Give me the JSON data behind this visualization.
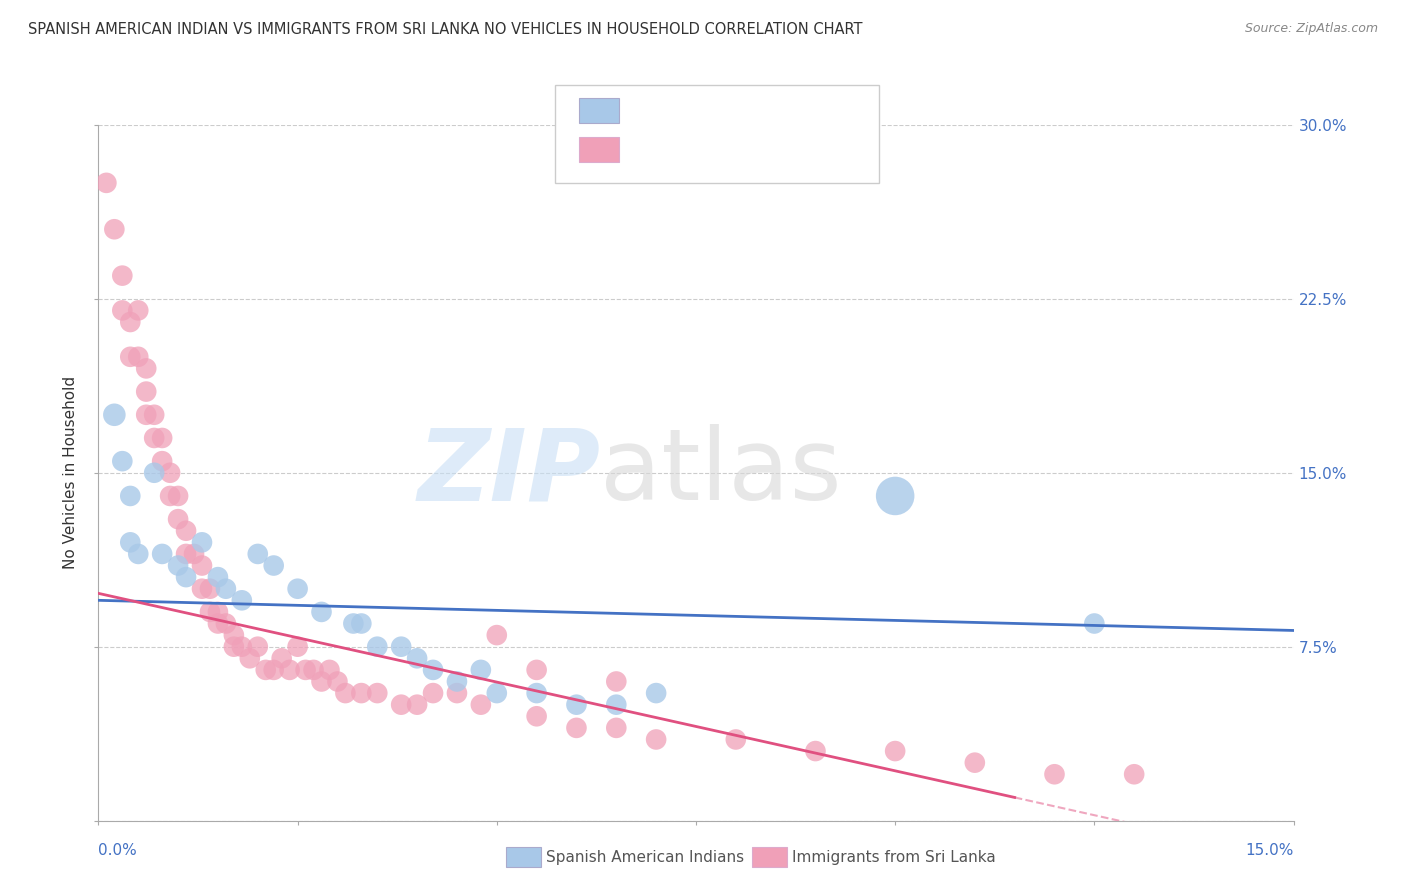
{
  "title": "SPANISH AMERICAN INDIAN VS IMMIGRANTS FROM SRI LANKA NO VEHICLES IN HOUSEHOLD CORRELATION CHART",
  "source": "Source: ZipAtlas.com",
  "ylabel": "No Vehicles in Household",
  "legend_label_blue": "Spanish American Indians",
  "legend_label_pink": "Immigrants from Sri Lanka",
  "blue_color": "#a8c8e8",
  "pink_color": "#f0a0b8",
  "blue_line_color": "#4472C4",
  "pink_line_color": "#E05080",
  "watermark_zip_color": "#cce0f5",
  "watermark_atlas_color": "#d0d0d0",
  "xlim": [
    0.0,
    0.15
  ],
  "ylim": [
    0.0,
    0.3
  ],
  "yticks": [
    0.0,
    0.075,
    0.15,
    0.225,
    0.3
  ],
  "ytick_labels": [
    "",
    "7.5%",
    "15.0%",
    "22.5%",
    "30.0%"
  ],
  "xtick_labels_show": [
    "0.0%",
    "15.0%"
  ],
  "figsize": [
    14.06,
    8.92
  ],
  "dpi": 100,
  "blue_line_x": [
    0.0,
    0.15
  ],
  "blue_line_y": [
    0.095,
    0.082
  ],
  "pink_line_x": [
    0.0,
    0.115
  ],
  "pink_line_y": [
    0.098,
    0.01
  ],
  "blue_scatter_x": [
    0.002,
    0.003,
    0.004,
    0.004,
    0.005,
    0.007,
    0.008,
    0.01,
    0.011,
    0.013,
    0.015,
    0.016,
    0.018,
    0.02,
    0.022,
    0.025,
    0.028,
    0.032,
    0.033,
    0.035,
    0.038,
    0.04,
    0.042,
    0.045,
    0.048,
    0.05,
    0.055,
    0.06,
    0.065,
    0.07,
    0.1,
    0.125
  ],
  "blue_scatter_y": [
    0.175,
    0.155,
    0.14,
    0.12,
    0.115,
    0.15,
    0.115,
    0.11,
    0.105,
    0.12,
    0.105,
    0.1,
    0.095,
    0.115,
    0.11,
    0.1,
    0.09,
    0.085,
    0.085,
    0.075,
    0.075,
    0.07,
    0.065,
    0.06,
    0.065,
    0.055,
    0.055,
    0.05,
    0.05,
    0.055,
    0.14,
    0.085
  ],
  "pink_scatter_x": [
    0.001,
    0.002,
    0.003,
    0.003,
    0.004,
    0.004,
    0.005,
    0.005,
    0.006,
    0.006,
    0.006,
    0.007,
    0.007,
    0.008,
    0.008,
    0.009,
    0.009,
    0.01,
    0.01,
    0.011,
    0.011,
    0.012,
    0.013,
    0.013,
    0.014,
    0.014,
    0.015,
    0.015,
    0.016,
    0.017,
    0.017,
    0.018,
    0.019,
    0.02,
    0.021,
    0.022,
    0.023,
    0.024,
    0.025,
    0.026,
    0.027,
    0.028,
    0.029,
    0.03,
    0.031,
    0.033,
    0.035,
    0.038,
    0.04,
    0.042,
    0.045,
    0.048,
    0.05,
    0.055,
    0.06,
    0.065,
    0.07,
    0.08,
    0.09,
    0.1,
    0.11,
    0.12,
    0.13,
    0.055,
    0.065
  ],
  "pink_scatter_y": [
    0.275,
    0.255,
    0.235,
    0.22,
    0.215,
    0.2,
    0.22,
    0.2,
    0.195,
    0.185,
    0.175,
    0.165,
    0.175,
    0.165,
    0.155,
    0.15,
    0.14,
    0.14,
    0.13,
    0.125,
    0.115,
    0.115,
    0.11,
    0.1,
    0.1,
    0.09,
    0.09,
    0.085,
    0.085,
    0.08,
    0.075,
    0.075,
    0.07,
    0.075,
    0.065,
    0.065,
    0.07,
    0.065,
    0.075,
    0.065,
    0.065,
    0.06,
    0.065,
    0.06,
    0.055,
    0.055,
    0.055,
    0.05,
    0.05,
    0.055,
    0.055,
    0.05,
    0.08,
    0.045,
    0.04,
    0.04,
    0.035,
    0.035,
    0.03,
    0.03,
    0.025,
    0.02,
    0.02,
    0.065,
    0.06
  ],
  "blue_scatter_sizes": [
    120,
    100,
    100,
    100,
    100,
    100,
    100,
    100,
    100,
    100,
    100,
    100,
    100,
    100,
    100,
    100,
    100,
    100,
    100,
    100,
    100,
    100,
    100,
    100,
    100,
    100,
    100,
    100,
    100,
    100,
    350,
    100
  ],
  "pink_scatter_sizes": [
    100,
    100,
    100,
    100,
    100,
    100,
    100,
    100,
    100,
    100,
    100,
    100,
    100,
    100,
    100,
    100,
    100,
    100,
    100,
    100,
    100,
    100,
    100,
    100,
    100,
    100,
    100,
    100,
    100,
    100,
    100,
    100,
    100,
    100,
    100,
    100,
    100,
    100,
    100,
    100,
    100,
    100,
    100,
    100,
    100,
    100,
    100,
    100,
    100,
    100,
    100,
    100,
    100,
    100,
    100,
    100,
    100,
    100,
    100,
    100,
    100,
    100,
    100,
    100,
    100
  ]
}
